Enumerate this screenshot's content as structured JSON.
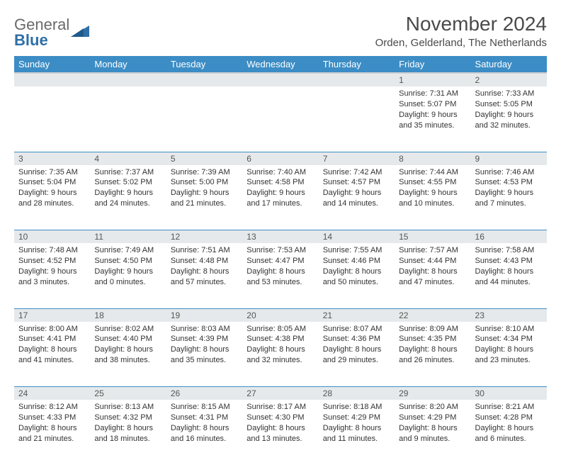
{
  "brand": {
    "line1": "General",
    "line2": "Blue"
  },
  "title": "November 2024",
  "location": "Orden, Gelderland, The Netherlands",
  "colors": {
    "header_bg": "#3c8dc5",
    "header_text": "#ffffff",
    "daynum_bg": "#e6e9eb",
    "rule": "#3c8dc5",
    "text": "#333333",
    "title_text": "#4a4a4a",
    "logo_gray": "#6a6a6a",
    "logo_blue": "#2f6fa7"
  },
  "typography": {
    "title_fontsize": 28,
    "location_fontsize": 15,
    "header_fontsize": 13,
    "daynum_fontsize": 12,
    "cell_fontsize": 11
  },
  "weekdays": [
    "Sunday",
    "Monday",
    "Tuesday",
    "Wednesday",
    "Thursday",
    "Friday",
    "Saturday"
  ],
  "weeks": [
    [
      null,
      null,
      null,
      null,
      null,
      {
        "n": "1",
        "sr": "Sunrise: 7:31 AM",
        "ss": "Sunset: 5:07 PM",
        "d1": "Daylight: 9 hours",
        "d2": "and 35 minutes."
      },
      {
        "n": "2",
        "sr": "Sunrise: 7:33 AM",
        "ss": "Sunset: 5:05 PM",
        "d1": "Daylight: 9 hours",
        "d2": "and 32 minutes."
      }
    ],
    [
      {
        "n": "3",
        "sr": "Sunrise: 7:35 AM",
        "ss": "Sunset: 5:04 PM",
        "d1": "Daylight: 9 hours",
        "d2": "and 28 minutes."
      },
      {
        "n": "4",
        "sr": "Sunrise: 7:37 AM",
        "ss": "Sunset: 5:02 PM",
        "d1": "Daylight: 9 hours",
        "d2": "and 24 minutes."
      },
      {
        "n": "5",
        "sr": "Sunrise: 7:39 AM",
        "ss": "Sunset: 5:00 PM",
        "d1": "Daylight: 9 hours",
        "d2": "and 21 minutes."
      },
      {
        "n": "6",
        "sr": "Sunrise: 7:40 AM",
        "ss": "Sunset: 4:58 PM",
        "d1": "Daylight: 9 hours",
        "d2": "and 17 minutes."
      },
      {
        "n": "7",
        "sr": "Sunrise: 7:42 AM",
        "ss": "Sunset: 4:57 PM",
        "d1": "Daylight: 9 hours",
        "d2": "and 14 minutes."
      },
      {
        "n": "8",
        "sr": "Sunrise: 7:44 AM",
        "ss": "Sunset: 4:55 PM",
        "d1": "Daylight: 9 hours",
        "d2": "and 10 minutes."
      },
      {
        "n": "9",
        "sr": "Sunrise: 7:46 AM",
        "ss": "Sunset: 4:53 PM",
        "d1": "Daylight: 9 hours",
        "d2": "and 7 minutes."
      }
    ],
    [
      {
        "n": "10",
        "sr": "Sunrise: 7:48 AM",
        "ss": "Sunset: 4:52 PM",
        "d1": "Daylight: 9 hours",
        "d2": "and 3 minutes."
      },
      {
        "n": "11",
        "sr": "Sunrise: 7:49 AM",
        "ss": "Sunset: 4:50 PM",
        "d1": "Daylight: 9 hours",
        "d2": "and 0 minutes."
      },
      {
        "n": "12",
        "sr": "Sunrise: 7:51 AM",
        "ss": "Sunset: 4:48 PM",
        "d1": "Daylight: 8 hours",
        "d2": "and 57 minutes."
      },
      {
        "n": "13",
        "sr": "Sunrise: 7:53 AM",
        "ss": "Sunset: 4:47 PM",
        "d1": "Daylight: 8 hours",
        "d2": "and 53 minutes."
      },
      {
        "n": "14",
        "sr": "Sunrise: 7:55 AM",
        "ss": "Sunset: 4:46 PM",
        "d1": "Daylight: 8 hours",
        "d2": "and 50 minutes."
      },
      {
        "n": "15",
        "sr": "Sunrise: 7:57 AM",
        "ss": "Sunset: 4:44 PM",
        "d1": "Daylight: 8 hours",
        "d2": "and 47 minutes."
      },
      {
        "n": "16",
        "sr": "Sunrise: 7:58 AM",
        "ss": "Sunset: 4:43 PM",
        "d1": "Daylight: 8 hours",
        "d2": "and 44 minutes."
      }
    ],
    [
      {
        "n": "17",
        "sr": "Sunrise: 8:00 AM",
        "ss": "Sunset: 4:41 PM",
        "d1": "Daylight: 8 hours",
        "d2": "and 41 minutes."
      },
      {
        "n": "18",
        "sr": "Sunrise: 8:02 AM",
        "ss": "Sunset: 4:40 PM",
        "d1": "Daylight: 8 hours",
        "d2": "and 38 minutes."
      },
      {
        "n": "19",
        "sr": "Sunrise: 8:03 AM",
        "ss": "Sunset: 4:39 PM",
        "d1": "Daylight: 8 hours",
        "d2": "and 35 minutes."
      },
      {
        "n": "20",
        "sr": "Sunrise: 8:05 AM",
        "ss": "Sunset: 4:38 PM",
        "d1": "Daylight: 8 hours",
        "d2": "and 32 minutes."
      },
      {
        "n": "21",
        "sr": "Sunrise: 8:07 AM",
        "ss": "Sunset: 4:36 PM",
        "d1": "Daylight: 8 hours",
        "d2": "and 29 minutes."
      },
      {
        "n": "22",
        "sr": "Sunrise: 8:09 AM",
        "ss": "Sunset: 4:35 PM",
        "d1": "Daylight: 8 hours",
        "d2": "and 26 minutes."
      },
      {
        "n": "23",
        "sr": "Sunrise: 8:10 AM",
        "ss": "Sunset: 4:34 PM",
        "d1": "Daylight: 8 hours",
        "d2": "and 23 minutes."
      }
    ],
    [
      {
        "n": "24",
        "sr": "Sunrise: 8:12 AM",
        "ss": "Sunset: 4:33 PM",
        "d1": "Daylight: 8 hours",
        "d2": "and 21 minutes."
      },
      {
        "n": "25",
        "sr": "Sunrise: 8:13 AM",
        "ss": "Sunset: 4:32 PM",
        "d1": "Daylight: 8 hours",
        "d2": "and 18 minutes."
      },
      {
        "n": "26",
        "sr": "Sunrise: 8:15 AM",
        "ss": "Sunset: 4:31 PM",
        "d1": "Daylight: 8 hours",
        "d2": "and 16 minutes."
      },
      {
        "n": "27",
        "sr": "Sunrise: 8:17 AM",
        "ss": "Sunset: 4:30 PM",
        "d1": "Daylight: 8 hours",
        "d2": "and 13 minutes."
      },
      {
        "n": "28",
        "sr": "Sunrise: 8:18 AM",
        "ss": "Sunset: 4:29 PM",
        "d1": "Daylight: 8 hours",
        "d2": "and 11 minutes."
      },
      {
        "n": "29",
        "sr": "Sunrise: 8:20 AM",
        "ss": "Sunset: 4:29 PM",
        "d1": "Daylight: 8 hours",
        "d2": "and 9 minutes."
      },
      {
        "n": "30",
        "sr": "Sunrise: 8:21 AM",
        "ss": "Sunset: 4:28 PM",
        "d1": "Daylight: 8 hours",
        "d2": "and 6 minutes."
      }
    ]
  ]
}
